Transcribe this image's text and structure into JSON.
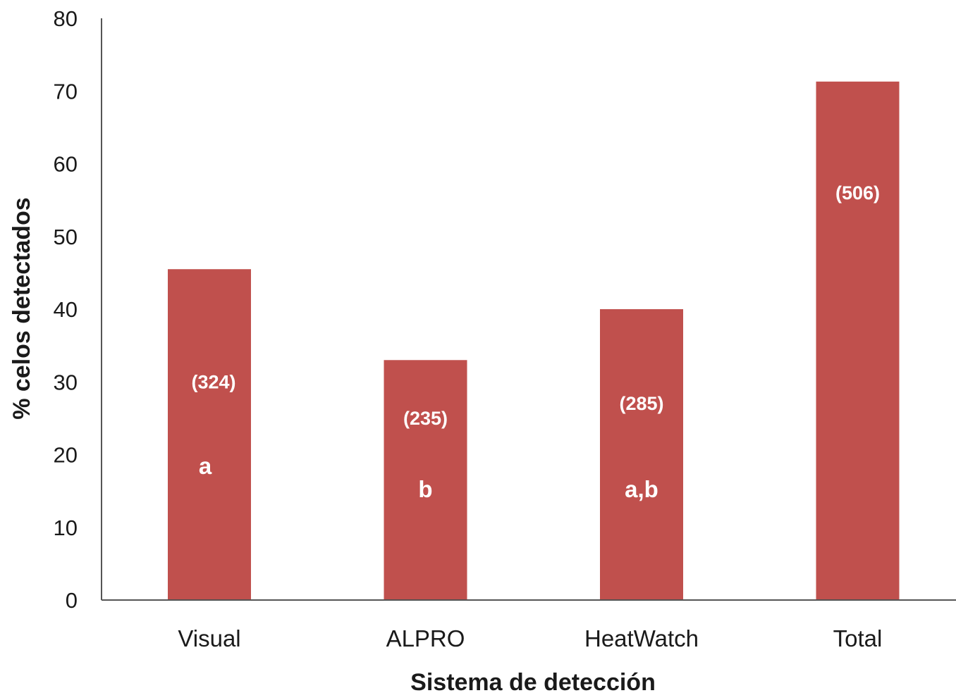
{
  "chart_data": {
    "type": "bar",
    "categories": [
      "Visual",
      "ALPRO",
      "HeatWatch",
      "Total"
    ],
    "values": [
      45.5,
      33.0,
      40.0,
      71.3
    ],
    "n_labels": [
      "(324)",
      "(235)",
      "(285)",
      "(506)"
    ],
    "significance_labels": [
      "a",
      "b",
      "a,b",
      ""
    ],
    "xlabel": "Sistema de detección",
    "ylabel": "% celos detectados",
    "ylim": [
      0,
      80
    ],
    "yticks": [
      0,
      10,
      20,
      30,
      40,
      50,
      60,
      70,
      80
    ],
    "grid": false,
    "legend": "none",
    "bar_color": "#c0504d"
  }
}
